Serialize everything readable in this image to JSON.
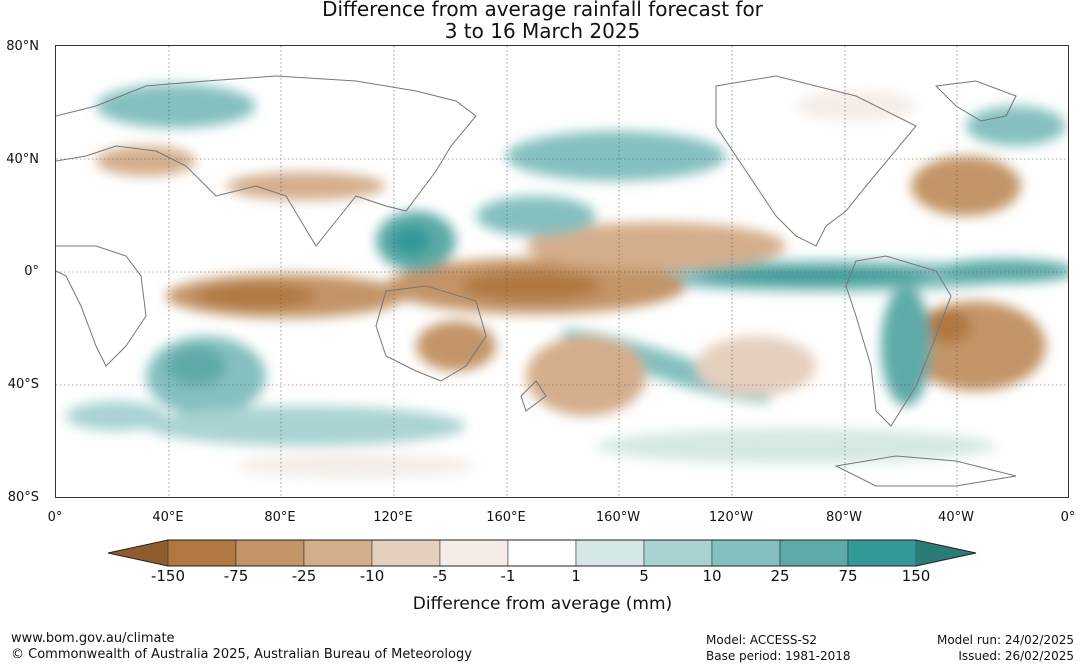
{
  "title": {
    "line1": "Difference from average rainfall forecast for",
    "line2": "3 to 16 March 2025"
  },
  "map": {
    "lat_labels": [
      "80°N",
      "40°N",
      "0°",
      "40°S",
      "80°S"
    ],
    "lon_labels": [
      "0°",
      "40°E",
      "80°E",
      "120°E",
      "160°E",
      "160°W",
      "120°W",
      "80°W",
      "40°W",
      "0°"
    ],
    "lat_range": [
      -80,
      80
    ],
    "lon_range": [
      0,
      360
    ],
    "grid": "dotted",
    "colors": {
      "dry_extreme": "#8a5a2e",
      "wet_extreme": "#2b7b76",
      "coastline": "#777777"
    }
  },
  "colorbar": {
    "tick_labels": [
      "-150",
      "-75",
      "-25",
      "-10",
      "-5",
      "-1",
      "1",
      "5",
      "10",
      "25",
      "75",
      "150"
    ],
    "colors": [
      "#8f5c2f",
      "#b07840",
      "#c39467",
      "#d4ad8b",
      "#e5cfbd",
      "#f4ece6",
      "#ffffff",
      "#d5e8e6",
      "#a9d3d1",
      "#84c0bf",
      "#5daaa8",
      "#339997",
      "#2b7b76"
    ],
    "label": "Difference from average (mm)"
  },
  "footer": {
    "website": "www.bom.gov.au/climate",
    "copyright": "© Commonwealth of Australia 2025, Australian Bureau of Meteorology",
    "model": "Model: ACCESS-S2",
    "base_period": "Base period: 1981-2018",
    "model_run": "Model run: 24/02/2025",
    "issued": "Issued: 26/02/2025"
  }
}
